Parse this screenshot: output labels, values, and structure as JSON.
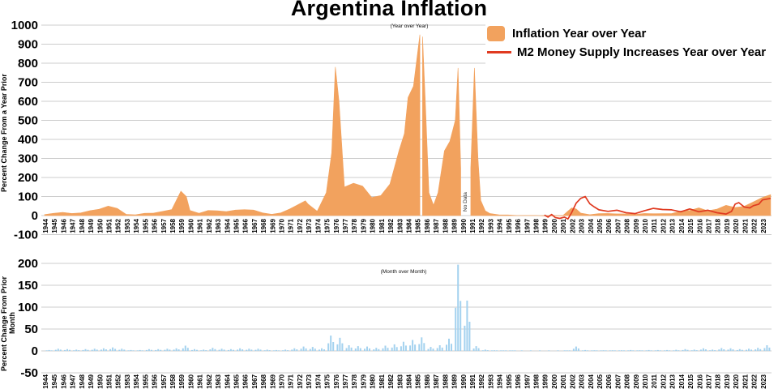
{
  "title": "Argentina Inflation",
  "legend": {
    "items": [
      {
        "label": "Inflation Year over Year",
        "marker": "area-swatch",
        "color": "#F2A25E"
      },
      {
        "label": "M2 Money Supply Increases Year over Year",
        "marker": "line",
        "color": "#E03A20"
      }
    ]
  },
  "chart_data": [
    {
      "type": "area",
      "panel": "top",
      "subtitle": "(Year over Year)",
      "ylabel": "Percent Change From a Year Prior",
      "ylim": [
        -100,
        1000
      ],
      "yticks": [
        1000,
        900,
        800,
        700,
        600,
        500,
        400,
        300,
        200,
        100,
        0,
        -100
      ],
      "grid": true,
      "x_years": [
        1944,
        1945,
        1946,
        1947,
        1948,
        1949,
        1950,
        1951,
        1952,
        1953,
        1954,
        1955,
        1956,
        1957,
        1958,
        1959,
        1960,
        1961,
        1962,
        1963,
        1964,
        1965,
        1966,
        1967,
        1968,
        1969,
        1970,
        1971,
        1972,
        1973,
        1974,
        1975,
        1976,
        1977,
        1978,
        1979,
        1980,
        1981,
        1982,
        1983,
        1984,
        1985,
        1986,
        1987,
        1988,
        1989,
        1990,
        1991,
        1992,
        1993,
        1994,
        1995,
        1996,
        1997,
        1998,
        1999,
        2000,
        2001,
        2002,
        2003,
        2004,
        2005,
        2006,
        2007,
        2008,
        2009,
        2010,
        2011,
        2012,
        2013,
        2014,
        2015,
        2016,
        2017,
        2018,
        2019,
        2020,
        2021,
        2022,
        2023
      ],
      "series": [
        {
          "name": "Inflation Year over Year",
          "style": "area",
          "color": "#F2A25E",
          "points": [
            [
              1944,
              5
            ],
            [
              1945,
              12
            ],
            [
              1946,
              17
            ],
            [
              1947,
              11
            ],
            [
              1948,
              14
            ],
            [
              1949,
              26
            ],
            [
              1950,
              33
            ],
            [
              1951,
              50
            ],
            [
              1952,
              38
            ],
            [
              1953,
              6
            ],
            [
              1954,
              4
            ],
            [
              1955,
              12
            ],
            [
              1956,
              13
            ],
            [
              1957,
              22
            ],
            [
              1958,
              32
            ],
            [
              1959,
              128
            ],
            [
              1959.6,
              100
            ],
            [
              1960,
              27
            ],
            [
              1961,
              12
            ],
            [
              1962,
              27
            ],
            [
              1963,
              25
            ],
            [
              1964,
              21
            ],
            [
              1965,
              29
            ],
            [
              1966,
              31
            ],
            [
              1967,
              29
            ],
            [
              1968,
              14
            ],
            [
              1969,
              7
            ],
            [
              1970,
              14
            ],
            [
              1971,
              35
            ],
            [
              1972,
              60
            ],
            [
              1972.7,
              78
            ],
            [
              1973,
              60
            ],
            [
              1974,
              23
            ],
            [
              1975,
              120
            ],
            [
              1975.6,
              330
            ],
            [
              1976,
              780
            ],
            [
              1976.4,
              600
            ],
            [
              1977,
              150
            ],
            [
              1978,
              170
            ],
            [
              1979,
              155
            ],
            [
              1980,
              95
            ],
            [
              1981,
              105
            ],
            [
              1982,
              165
            ],
            [
              1983,
              340
            ],
            [
              1983.6,
              430
            ],
            [
              1984,
              620
            ],
            [
              1984.6,
              680
            ],
            [
              1985.3,
              950
            ],
            [
              1985.45,
              null
            ],
            [
              1985.6,
              940
            ],
            [
              1985.9,
              600
            ],
            [
              1986.3,
              120
            ],
            [
              1986.8,
              55
            ],
            [
              1987.3,
              120
            ],
            [
              1988,
              340
            ],
            [
              1988.6,
              390
            ],
            [
              1989.2,
              500
            ],
            [
              1989.5,
              775
            ],
            [
              1989.8,
              250
            ],
            [
              1990,
              null
            ],
            [
              1990.9,
              250
            ],
            [
              1991.3,
              775
            ],
            [
              1991.7,
              300
            ],
            [
              1992,
              80
            ],
            [
              1992.5,
              25
            ],
            [
              1993,
              11
            ],
            [
              1994,
              4
            ],
            [
              1995,
              3.5
            ],
            [
              1996,
              0.5
            ],
            [
              1997,
              0.8
            ],
            [
              1998,
              1
            ],
            [
              1999,
              -1.5
            ],
            [
              2000,
              -1
            ],
            [
              2001,
              -1.5
            ],
            [
              2002,
              40
            ],
            [
              2002.5,
              35
            ],
            [
              2003,
              13
            ],
            [
              2004,
              4.5
            ],
            [
              2005,
              10
            ],
            [
              2006,
              11
            ],
            [
              2007,
              9
            ],
            [
              2008,
              9
            ],
            [
              2009,
              6.5
            ],
            [
              2010,
              11
            ],
            [
              2011,
              9.8
            ],
            [
              2012,
              10.5
            ],
            [
              2013,
              10.6
            ],
            [
              2014,
              24
            ],
            [
              2015,
              27
            ],
            [
              2016,
              41
            ],
            [
              2017,
              25
            ],
            [
              2018,
              34
            ],
            [
              2019,
              54
            ],
            [
              2020,
              42
            ],
            [
              2021,
              49
            ],
            [
              2022,
              72
            ],
            [
              2023,
              95
            ],
            [
              2023.9,
              110
            ]
          ]
        },
        {
          "name": "M2 Money Supply Increases Year over Year",
          "style": "line",
          "color": "#E03A20",
          "points": [
            [
              1999,
              3
            ],
            [
              1999.4,
              -8
            ],
            [
              1999.8,
              6
            ],
            [
              2000.2,
              -10
            ],
            [
              2000.7,
              -15
            ],
            [
              2001.2,
              -8
            ],
            [
              2001.6,
              -18
            ],
            [
              2002,
              15
            ],
            [
              2002.5,
              65
            ],
            [
              2003,
              90
            ],
            [
              2003.5,
              100
            ],
            [
              2004,
              62
            ],
            [
              2004.5,
              45
            ],
            [
              2005,
              30
            ],
            [
              2006,
              22
            ],
            [
              2007,
              28
            ],
            [
              2008,
              15
            ],
            [
              2009,
              10
            ],
            [
              2010,
              25
            ],
            [
              2011,
              38
            ],
            [
              2012,
              32
            ],
            [
              2013,
              30
            ],
            [
              2014,
              20
            ],
            [
              2015,
              35
            ],
            [
              2016,
              20
            ],
            [
              2017,
              28
            ],
            [
              2018,
              15
            ],
            [
              2019,
              8
            ],
            [
              2019.6,
              22
            ],
            [
              2020,
              60
            ],
            [
              2020.4,
              68
            ],
            [
              2021,
              45
            ],
            [
              2021.6,
              40
            ],
            [
              2022,
              52
            ],
            [
              2022.6,
              60
            ],
            [
              2023,
              82
            ],
            [
              2023.9,
              90
            ]
          ]
        }
      ],
      "annotations": [
        {
          "text": "No Data",
          "x": 1990.45,
          "rotated": true
        }
      ]
    },
    {
      "type": "bar",
      "panel": "bottom",
      "subtitle": "(Month over Month)",
      "ylabel": "Percent Change From Prior Month",
      "ylim": [
        -50,
        200
      ],
      "yticks": [
        200,
        150,
        100,
        50,
        0,
        -50
      ],
      "grid": true,
      "color": "#A4D2EF",
      "x_years": [
        1944,
        1945,
        1946,
        1947,
        1948,
        1949,
        1950,
        1951,
        1952,
        1953,
        1954,
        1955,
        1956,
        1957,
        1958,
        1959,
        1960,
        1961,
        1962,
        1963,
        1964,
        1965,
        1966,
        1967,
        1968,
        1969,
        1970,
        1971,
        1972,
        1973,
        1974,
        1975,
        1976,
        1977,
        1978,
        1979,
        1980,
        1981,
        1982,
        1983,
        1984,
        1985,
        1986,
        1987,
        1988,
        1989,
        1990,
        1991,
        1992,
        1993,
        1994,
        1995,
        1996,
        1997,
        1998,
        1999,
        2000,
        2001,
        2002,
        2003,
        2004,
        2005,
        2006,
        2007,
        2008,
        2009,
        2010,
        2011,
        2012,
        2013,
        2014,
        2015,
        2016,
        2017,
        2018,
        2019,
        2020,
        2021,
        2022,
        2023
      ],
      "values": [
        2,
        5,
        4,
        3,
        4,
        5,
        6,
        8,
        5,
        2,
        2,
        4,
        4,
        5,
        6,
        12,
        4,
        3,
        7,
        5,
        4,
        6,
        5,
        5,
        3,
        2,
        3,
        6,
        10,
        9,
        6,
        35,
        30,
        13,
        11,
        10,
        7,
        12,
        15,
        21,
        25,
        31,
        9,
        13,
        28,
        197,
        115,
        11,
        3,
        1.5,
        1,
        1,
        0.5,
        0.5,
        0.5,
        0.5,
        0.5,
        1,
        10,
        2,
        1.5,
        1.5,
        1.5,
        1.5,
        2,
        1.5,
        2,
        2,
        2,
        2.5,
        4,
        3,
        6,
        3,
        6.5,
        6,
        4,
        5,
        7,
        13
      ]
    }
  ]
}
